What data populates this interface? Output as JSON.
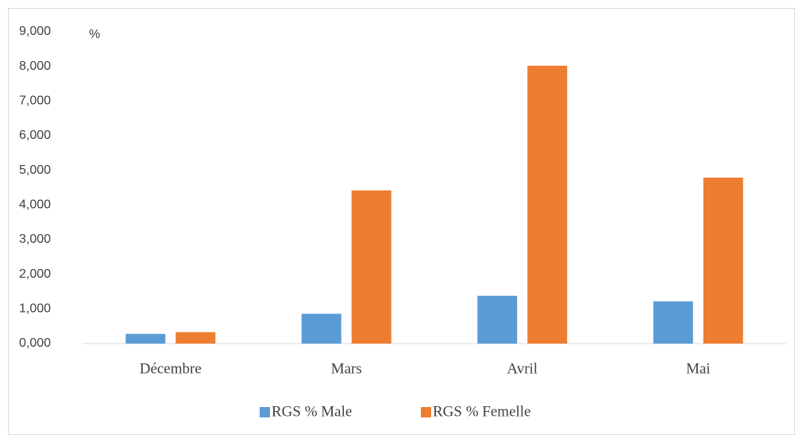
{
  "chart_data": {
    "type": "bar",
    "y_label": "%",
    "categories": [
      "Décembre",
      "Mars",
      "Avril",
      "Mai"
    ],
    "series": [
      {
        "name": "RGS % Male",
        "color": "#5b9bd5",
        "values": [
          0.28,
          0.86,
          1.38,
          1.22
        ]
      },
      {
        "name": "RGS % Femelle",
        "color": "#ed7d31",
        "values": [
          0.33,
          4.42,
          8.02,
          4.79
        ]
      }
    ],
    "ylim": [
      0,
      9
    ],
    "yticks": [
      {
        "value": 0,
        "label": "0,000"
      },
      {
        "value": 1,
        "label": "1,000"
      },
      {
        "value": 2,
        "label": "2,000"
      },
      {
        "value": 3,
        "label": "3,000"
      },
      {
        "value": 4,
        "label": "4,000"
      },
      {
        "value": 5,
        "label": "5,000"
      },
      {
        "value": 6,
        "label": "6,000"
      },
      {
        "value": 7,
        "label": "7,000"
      },
      {
        "value": 8,
        "label": "8,000"
      },
      {
        "value": 9,
        "label": "9,000"
      }
    ],
    "legend": "bottom"
  }
}
